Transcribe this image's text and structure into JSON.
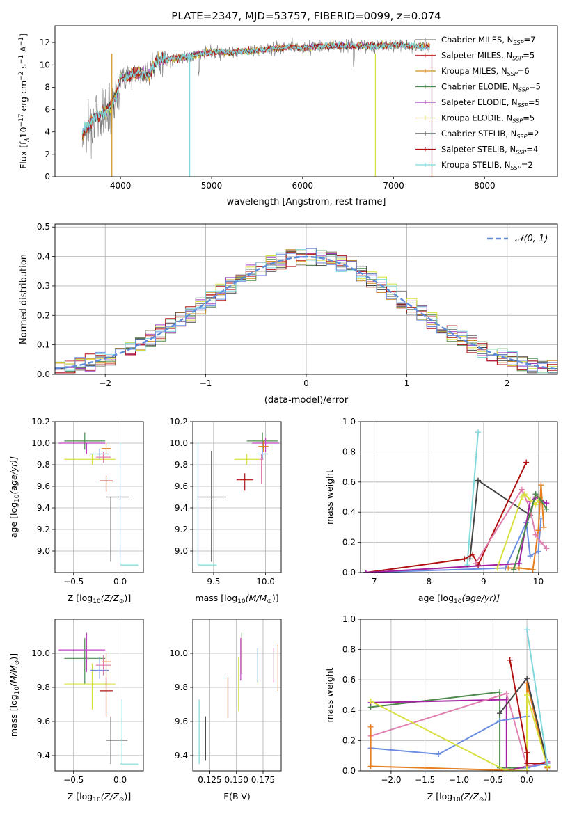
{
  "chart_data": [
    {
      "id": "spectrum",
      "type": "line",
      "title": "PLATE=2347, MJD=53757, FIBERID=0099, z=0.074",
      "xlabel": "wavelength [Angstrom, rest frame]",
      "ylabel_parts": [
        "Flux [f",
        "λ",
        "10",
        "−17",
        " erg cm",
        "−2",
        " s",
        "−1",
        " A",
        "−1",
        "]"
      ],
      "xlim": [
        3280,
        8800
      ],
      "ylim": [
        0,
        13.5
      ],
      "xticks": [
        4000,
        5000,
        6000,
        7000,
        8000
      ],
      "yticks": [
        0,
        2,
        4,
        6,
        8,
        10,
        12
      ],
      "continuum": {
        "x": [
          3580,
          3700,
          3800,
          3900,
          3950,
          4000,
          4100,
          4200,
          4300,
          4400,
          4600,
          4800,
          5000,
          5200,
          5500,
          5800,
          6000,
          6300,
          6500,
          6800,
          7000,
          7200,
          7400
        ],
        "y": [
          3.8,
          5.2,
          5.6,
          6.4,
          7.2,
          8.8,
          9.0,
          9.3,
          9.0,
          10.4,
          10.6,
          10.8,
          11.2,
          11.1,
          11.3,
          11.6,
          11.5,
          11.7,
          11.7,
          11.7,
          11.8,
          11.7,
          11.6
        ]
      },
      "series": [
        {
          "name_parts": [
            "Chabrier MILES, N",
            "SSP",
            "=7"
          ],
          "color": "#7f7f7f"
        },
        {
          "name_parts": [
            "Salpeter MILES, N",
            "SSP",
            "=5"
          ],
          "color": "#c43e3e"
        },
        {
          "name_parts": [
            "Kroupa MILES, N",
            "SSP",
            "=6"
          ],
          "color": "#d09020"
        },
        {
          "name_parts": [
            "Chabrier ELODIE, N",
            "SSP",
            "=5"
          ],
          "color": "#4d8a4d"
        },
        {
          "name_parts": [
            "Salpeter ELODIE, N",
            "SSP",
            "=5"
          ],
          "color": "#a040c0"
        },
        {
          "name_parts": [
            "Kroupa ELODIE, N",
            "SSP",
            "=5"
          ],
          "color": "#d8e040"
        },
        {
          "name_parts": [
            "Chabrier STELIB, N",
            "SSP",
            "=2"
          ],
          "color": "#444444"
        },
        {
          "name_parts": [
            "Salpeter STELIB, N",
            "SSP",
            "=4"
          ],
          "color": "#b01010"
        },
        {
          "name_parts": [
            "Kroupa STELIB, N",
            "SSP",
            "=2"
          ],
          "color": "#80d8dc"
        }
      ]
    },
    {
      "id": "residuals",
      "type": "histogram",
      "xlabel": "(data-model)/error",
      "ylabel": "Normed distribution",
      "xlim": [
        -2.5,
        2.5
      ],
      "ylim": [
        0,
        0.51
      ],
      "xticks": [
        -2,
        -1,
        0,
        1,
        2
      ],
      "yticks": [
        0.0,
        0.1,
        0.2,
        0.3,
        0.4,
        0.5
      ],
      "bin_width": 0.1,
      "legend": "𝒩(0, 1)",
      "gaussian": {
        "mean": 0,
        "sigma": 1,
        "color": "#5b8ad8"
      },
      "series_colors": [
        "#7f7f7f",
        "#c43e3e",
        "#d09020",
        "#4d8a4d",
        "#a040c0",
        "#d8e040",
        "#444444",
        "#b01010",
        "#80d8dc",
        "#6b8ee0"
      ]
    },
    {
      "id": "age-vs-Z",
      "type": "errorbar",
      "xlabel_parts": [
        "Z [log",
        "10",
        "(Z/Z",
        "⊙",
        ")]"
      ],
      "ylabel_parts": [
        "age  [log",
        "10",
        "(age/yr)]"
      ],
      "xlim": [
        -0.7,
        0.25
      ],
      "ylim": [
        8.8,
        10.2
      ],
      "xticks": [
        -0.5,
        0.0
      ],
      "yticks": [
        9.0,
        9.2,
        9.4,
        9.6,
        9.8,
        10.0,
        10.2
      ],
      "points": [
        {
          "x": -0.38,
          "xlo": 0.22,
          "xhi": 0.22,
          "y": 10.02,
          "ylo": 0.08,
          "yhi": 0.08,
          "color": "#4d8a4d"
        },
        {
          "x": -0.36,
          "xlo": 0.3,
          "xhi": 0.2,
          "y": 10.0,
          "ylo": 0.1,
          "yhi": 0.0,
          "color": "#c040c0"
        },
        {
          "x": -0.3,
          "xlo": 0.3,
          "xhi": 0.25,
          "y": 9.85,
          "ylo": 0.05,
          "yhi": 0.05,
          "color": "#d8e040"
        },
        {
          "x": -0.22,
          "xlo": 0.1,
          "xhi": 0.1,
          "y": 9.9,
          "ylo": 0.05,
          "yhi": 0.05,
          "color": "#6b8ee0"
        },
        {
          "x": -0.15,
          "xlo": 0.05,
          "xhi": 0.05,
          "y": 9.95,
          "ylo": 0.05,
          "yhi": 0.05,
          "color": "#e77f20"
        },
        {
          "x": -0.18,
          "xlo": 0.08,
          "xhi": 0.08,
          "y": 9.87,
          "ylo": 0.05,
          "yhi": 0.05,
          "color": "#e080b0"
        },
        {
          "x": -0.15,
          "xlo": 0.07,
          "xhi": 0.07,
          "y": 9.65,
          "ylo": 0.1,
          "yhi": 0.05,
          "color": "#b01010"
        },
        {
          "x": -0.1,
          "xlo": 0.05,
          "xhi": 0.2,
          "y": 9.5,
          "ylo": 0.6,
          "yhi": 0.0,
          "color": "#444444"
        },
        {
          "x": 0.0,
          "xlo": 0.0,
          "xhi": 0.2,
          "y": 8.87,
          "ylo": 0.0,
          "yhi": 1.13,
          "color": "#80d8dc"
        }
      ]
    },
    {
      "id": "age-vs-mass",
      "type": "errorbar",
      "xlabel_parts": [
        "mass [log",
        "10",
        "(M/M",
        "⊙",
        ")]"
      ],
      "ylabel_parts": [],
      "xlim": [
        9.3,
        10.15
      ],
      "ylim": [
        8.8,
        10.2
      ],
      "xticks": [
        9.5,
        10.0
      ],
      "yticks": [
        9.0,
        9.2,
        9.4,
        9.6,
        9.8,
        10.0,
        10.2
      ],
      "points": [
        {
          "x": 9.48,
          "xlo": 0.14,
          "xhi": 0.14,
          "y": 9.5,
          "ylo": 0.6,
          "yhi": 0.43,
          "color": "#444444"
        },
        {
          "x": 9.8,
          "xlo": 0.08,
          "xhi": 0.08,
          "y": 9.66,
          "ylo": 0.1,
          "yhi": 0.06,
          "color": "#b01010"
        },
        {
          "x": 9.82,
          "xlo": 0.12,
          "xhi": 0.12,
          "y": 9.85,
          "ylo": 0.05,
          "yhi": 0.05,
          "color": "#d8e040"
        },
        {
          "x": 9.97,
          "xlo": 0.15,
          "xhi": 0.15,
          "y": 10.02,
          "ylo": 0.08,
          "yhi": 0.08,
          "color": "#4d8a4d"
        },
        {
          "x": 10.0,
          "xlo": 0.13,
          "xhi": 0.13,
          "y": 10.0,
          "ylo": 0.08,
          "yhi": 0.05,
          "color": "#c040c0"
        },
        {
          "x": 9.97,
          "xlo": 0.05,
          "xhi": 0.05,
          "y": 9.9,
          "ylo": 0.05,
          "yhi": 0.05,
          "color": "#6b8ee0"
        },
        {
          "x": 9.98,
          "xlo": 0.05,
          "xhi": 0.05,
          "y": 9.97,
          "ylo": 0.05,
          "yhi": 0.05,
          "color": "#e77f20"
        },
        {
          "x": 9.96,
          "xlo": 0.02,
          "xhi": 0.02,
          "y": 9.85,
          "ylo": 0.23,
          "yhi": 0.05,
          "color": "#e080b0"
        },
        {
          "x": 9.35,
          "xlo": 0.0,
          "xhi": 0.18,
          "y": 8.87,
          "ylo": 0.0,
          "yhi": 1.13,
          "color": "#80d8dc"
        }
      ]
    },
    {
      "id": "mass-weight-vs-age",
      "type": "line",
      "xlabel_parts": [
        "age  [log",
        "10",
        "(age/yr)]"
      ],
      "ylabel": "mass weight",
      "xlim": [
        6.75,
        10.35
      ],
      "ylim": [
        0,
        1.0
      ],
      "xticks": [
        7,
        8,
        9,
        10
      ],
      "yticks": [
        0.0,
        0.2,
        0.4,
        0.6,
        0.8,
        1.0
      ],
      "series": [
        {
          "color": "#80d8dc",
          "x": [
            8.7,
            8.9
          ],
          "y": [
            0.05,
            0.93
          ]
        },
        {
          "color": "#444444",
          "x": [
            8.75,
            8.9,
            9.85,
            9.95
          ],
          "y": [
            0.09,
            0.61,
            0.38,
            0.52
          ]
        },
        {
          "color": "#b01010",
          "x": [
            6.85,
            8.65,
            8.8,
            8.9,
            9.78
          ],
          "y": [
            0.0,
            0.09,
            0.12,
            0.05,
            0.73
          ]
        },
        {
          "color": "#6b8ee0",
          "x": [
            6.85,
            9.4,
            9.78,
            9.85,
            10.0,
            10.05
          ],
          "y": [
            0.0,
            0.03,
            0.33,
            0.11,
            0.14,
            0.36
          ]
        },
        {
          "color": "#e77f20",
          "x": [
            9.45,
            9.65,
            9.9,
            10.0,
            10.05,
            10.1
          ],
          "y": [
            0.03,
            0.03,
            0.02,
            0.28,
            0.58,
            0.3
          ]
        },
        {
          "color": "#e080b0",
          "x": [
            8.85,
            9.7,
            9.85,
            9.95,
            10.05,
            10.15
          ],
          "y": [
            0.06,
            0.55,
            0.42,
            0.25,
            0.2,
            0.16
          ]
        },
        {
          "color": "#a020a0",
          "x": [
            6.85,
            9.65,
            9.85,
            9.95,
            10.15
          ],
          "y": [
            0.0,
            0.06,
            0.47,
            0.5,
            0.46
          ]
        },
        {
          "color": "#d8e040",
          "x": [
            9.25,
            9.7,
            9.75,
            9.85,
            9.95,
            10.0
          ],
          "y": [
            0.03,
            0.5,
            0.52,
            0.48,
            0.45,
            0.48
          ]
        },
        {
          "color": "#4d8a4d",
          "x": [
            9.55,
            9.95,
            10.05,
            10.15
          ],
          "y": [
            0.02,
            0.52,
            0.48,
            0.42
          ]
        }
      ]
    },
    {
      "id": "mass-vs-Z",
      "type": "errorbar",
      "xlabel_parts": [
        "Z [log",
        "10",
        "(Z/Z",
        "⊙",
        ")]"
      ],
      "ylabel_parts": [
        "mass [log",
        "10",
        "(M/M",
        "⊙",
        ")]"
      ],
      "xlim": [
        -0.7,
        0.25
      ],
      "ylim": [
        9.31,
        10.2
      ],
      "xticks": [
        -0.5,
        0.0
      ],
      "yticks": [
        9.4,
        9.6,
        9.8,
        10.0
      ],
      "points": [
        {
          "x": -0.38,
          "xlo": 0.22,
          "xhi": 0.22,
          "y": 9.97,
          "ylo": 0.15,
          "yhi": 0.12,
          "color": "#4d8a4d"
        },
        {
          "x": -0.36,
          "xlo": 0.3,
          "xhi": 0.2,
          "y": 10.02,
          "ylo": 0.13,
          "yhi": 0.1,
          "color": "#c040c0"
        },
        {
          "x": -0.3,
          "xlo": 0.3,
          "xhi": 0.25,
          "y": 9.82,
          "ylo": 0.15,
          "yhi": 0.12,
          "color": "#d8e040"
        },
        {
          "x": -0.22,
          "xlo": 0.1,
          "xhi": 0.1,
          "y": 9.9,
          "ylo": 0.05,
          "yhi": 0.08,
          "color": "#6b8ee0"
        },
        {
          "x": -0.15,
          "xlo": 0.05,
          "xhi": 0.05,
          "y": 9.95,
          "ylo": 0.15,
          "yhi": 0.05,
          "color": "#e77f20"
        },
        {
          "x": -0.18,
          "xlo": 0.08,
          "xhi": 0.08,
          "y": 9.93,
          "ylo": 0.06,
          "yhi": 0.06,
          "color": "#e080b0"
        },
        {
          "x": -0.15,
          "xlo": 0.07,
          "xhi": 0.07,
          "y": 9.78,
          "ylo": 0.15,
          "yhi": 0.08,
          "color": "#b01010"
        },
        {
          "x": -0.1,
          "xlo": 0.05,
          "xhi": 0.18,
          "y": 9.49,
          "ylo": 0.14,
          "yhi": 0.14,
          "color": "#444444"
        },
        {
          "x": 0.02,
          "xlo": 0.02,
          "xhi": 0.18,
          "y": 9.35,
          "ylo": 0.0,
          "yhi": 0.38,
          "color": "#80d8dc"
        }
      ]
    },
    {
      "id": "mass-vs-ebv",
      "type": "errorbar",
      "xlabel": "E(B-V)",
      "ylabel_parts": [],
      "xlim": [
        0.109,
        0.192
      ],
      "ylim": [
        9.31,
        10.2
      ],
      "xticks": [
        0.125,
        0.15,
        0.175
      ],
      "xticklabels": [
        "0.125",
        "0.150",
        "0.175"
      ],
      "yticks": [
        9.4,
        9.6,
        9.8,
        10.0
      ],
      "points": [
        {
          "x": 0.115,
          "y": 9.55,
          "ylo": 0.2,
          "yhi": 0.18,
          "color": "#80d8dc"
        },
        {
          "x": 0.121,
          "y": 9.49,
          "ylo": 0.12,
          "yhi": 0.14,
          "color": "#444444"
        },
        {
          "x": 0.142,
          "y": 9.74,
          "ylo": 0.12,
          "yhi": 0.12,
          "color": "#b01010"
        },
        {
          "x": 0.152,
          "y": 9.82,
          "ylo": 0.16,
          "yhi": 0.16,
          "color": "#d8e040"
        },
        {
          "x": 0.154,
          "y": 9.97,
          "ylo": 0.13,
          "yhi": 0.12,
          "color": "#c040c0"
        },
        {
          "x": 0.155,
          "y": 10.0,
          "ylo": 0.12,
          "yhi": 0.12,
          "color": "#4d8a4d"
        },
        {
          "x": 0.17,
          "y": 9.93,
          "ylo": 0.1,
          "yhi": 0.1,
          "color": "#6b8ee0"
        },
        {
          "x": 0.185,
          "y": 9.93,
          "ylo": 0.1,
          "yhi": 0.1,
          "color": "#e080b0"
        },
        {
          "x": 0.189,
          "y": 9.93,
          "ylo": 0.15,
          "yhi": 0.12,
          "color": "#e77f20"
        }
      ]
    },
    {
      "id": "mass-weight-vs-Z",
      "type": "line",
      "xlabel_parts": [
        "Z [log",
        "10",
        "(Z/Z",
        "⊙",
        ")]"
      ],
      "ylabel": "mass weight",
      "xlim": [
        -2.45,
        0.45
      ],
      "ylim": [
        0,
        1.0
      ],
      "xticks": [
        -2.0,
        -1.5,
        -1.0,
        -0.5,
        0.0
      ],
      "yticks": [
        0.0,
        0.2,
        0.4,
        0.6,
        0.8,
        1.0
      ],
      "series": [
        {
          "color": "#4d8a4d",
          "x": [
            -2.3,
            -0.4,
            -0.4,
            -0.4,
            0.0
          ],
          "y": [
            0.42,
            0.52,
            0.38,
            0.02,
            0.02
          ]
        },
        {
          "color": "#a020a0",
          "x": [
            -2.3,
            -0.3,
            -0.3,
            0.3,
            0.3
          ],
          "y": [
            0.45,
            0.47,
            0.0,
            0.06,
            0.02
          ]
        },
        {
          "color": "#e080b0",
          "x": [
            -2.3,
            -0.3,
            0.0,
            0.3
          ],
          "y": [
            0.23,
            0.51,
            0.03,
            0.05
          ]
        },
        {
          "color": "#6b8ee0",
          "x": [
            -2.3,
            -1.3,
            -0.4,
            0.0,
            0.0,
            0.3
          ],
          "y": [
            0.15,
            0.11,
            0.33,
            0.36,
            0.02,
            0.05
          ]
        },
        {
          "color": "#e77f20",
          "x": [
            -2.3,
            -2.3,
            0.0,
            0.0,
            0.3
          ],
          "y": [
            0.29,
            0.03,
            0.0,
            0.58,
            0.02
          ]
        },
        {
          "color": "#d8e040",
          "x": [
            -2.3,
            -0.3,
            0.0,
            0.0,
            0.3
          ],
          "y": [
            0.46,
            0.0,
            0.0,
            0.5,
            0.03
          ]
        },
        {
          "color": "#444444",
          "x": [
            -0.4,
            0.0,
            0.3
          ],
          "y": [
            0.38,
            0.61,
            0.05
          ]
        },
        {
          "color": "#b01010",
          "x": [
            -0.25,
            0.0,
            0.0,
            0.3
          ],
          "y": [
            0.73,
            0.12,
            0.05,
            0.05
          ]
        },
        {
          "color": "#80d8dc",
          "x": [
            0.0,
            0.3
          ],
          "y": [
            0.93,
            0.05
          ]
        }
      ]
    }
  ]
}
